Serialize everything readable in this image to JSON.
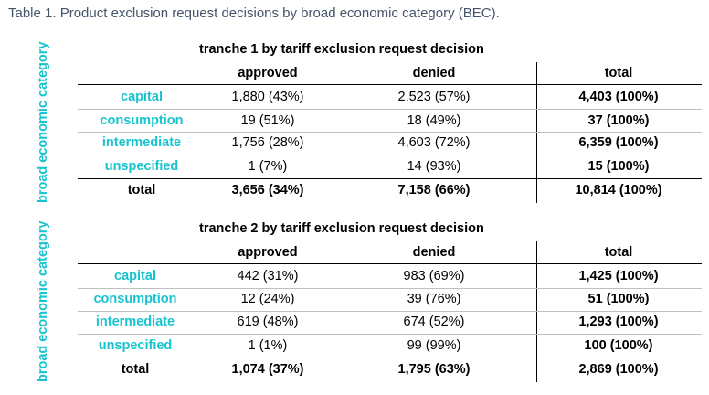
{
  "caption": "Table 1. Product exclusion request decisions by broad economic category (BEC).",
  "row_axis_label": "broad economic category",
  "columns": [
    "approved",
    "denied",
    "total"
  ],
  "tables": [
    {
      "heading": "tranche 1 by tariff exclusion request decision",
      "rows": [
        {
          "label": "capital",
          "approved": "1,880 (43%)",
          "denied": "2,523 (57%)",
          "total": "4,403 (100%)"
        },
        {
          "label": "consumption",
          "approved": "19 (51%)",
          "denied": "18 (49%)",
          "total": "37 (100%)"
        },
        {
          "label": "intermediate",
          "approved": "1,756 (28%)",
          "denied": "4,603 (72%)",
          "total": "6,359 (100%)"
        },
        {
          "label": "unspecified",
          "approved": "1 (7%)",
          "denied": "14 (93%)",
          "total": "15 (100%)"
        }
      ],
      "total_row": {
        "label": "total",
        "approved": "3,656 (34%)",
        "denied": "7,158 (66%)",
        "total": "10,814 (100%)"
      }
    },
    {
      "heading": "tranche 2 by tariff exclusion request decision",
      "rows": [
        {
          "label": "capital",
          "approved": "442 (31%)",
          "denied": "983 (69%)",
          "total": "1,425 (100%)"
        },
        {
          "label": "consumption",
          "approved": "12 (24%)",
          "denied": "39 (76%)",
          "total": "51 (100%)"
        },
        {
          "label": "intermediate",
          "approved": "619 (48%)",
          "denied": "674 (52%)",
          "total": "1,293 (100%)"
        },
        {
          "label": "unspecified",
          "approved": "1 (1%)",
          "denied": "99 (99%)",
          "total": "100 (100%)"
        }
      ],
      "total_row": {
        "label": "total",
        "approved": "1,074 (37%)",
        "denied": "1,795 (63%)",
        "total": "2,869 (100%)"
      }
    }
  ],
  "colors": {
    "accent": "#17c4cf",
    "caption": "#44546a",
    "rule": "#000000",
    "thin_rule": "#bfbfbf"
  }
}
